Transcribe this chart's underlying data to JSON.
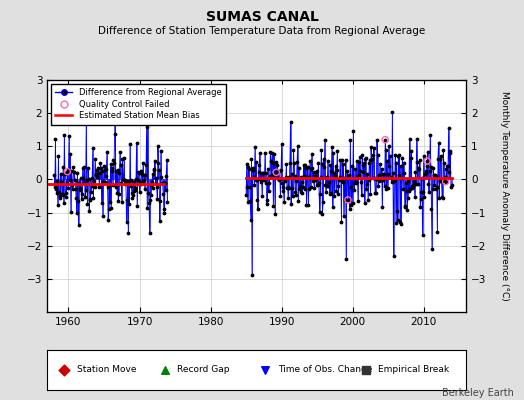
{
  "title": "SUMAS CANAL",
  "subtitle": "Difference of Station Temperature Data from Regional Average",
  "ylabel": "Monthly Temperature Anomaly Difference (°C)",
  "xlim": [
    1957,
    2016
  ],
  "ylim": [
    -4,
    3
  ],
  "yticks": [
    -3,
    -2,
    -1,
    0,
    1,
    2,
    3
  ],
  "xticks": [
    1960,
    1970,
    1980,
    1990,
    2000,
    2010
  ],
  "background_color": "#e0e0e0",
  "plot_bg_color": "#ffffff",
  "line_color": "#0000ff",
  "bias_color": "#ff0000",
  "qc_color": "#ff69b4",
  "marker_color": "#000000",
  "bias_segments": [
    {
      "x_start": 1957,
      "x_end": 1973.5,
      "bias": -0.15
    },
    {
      "x_start": 1985,
      "x_end": 2014,
      "bias": 0.05
    }
  ],
  "watermark": "Berkeley Earth",
  "random_seed": 42
}
